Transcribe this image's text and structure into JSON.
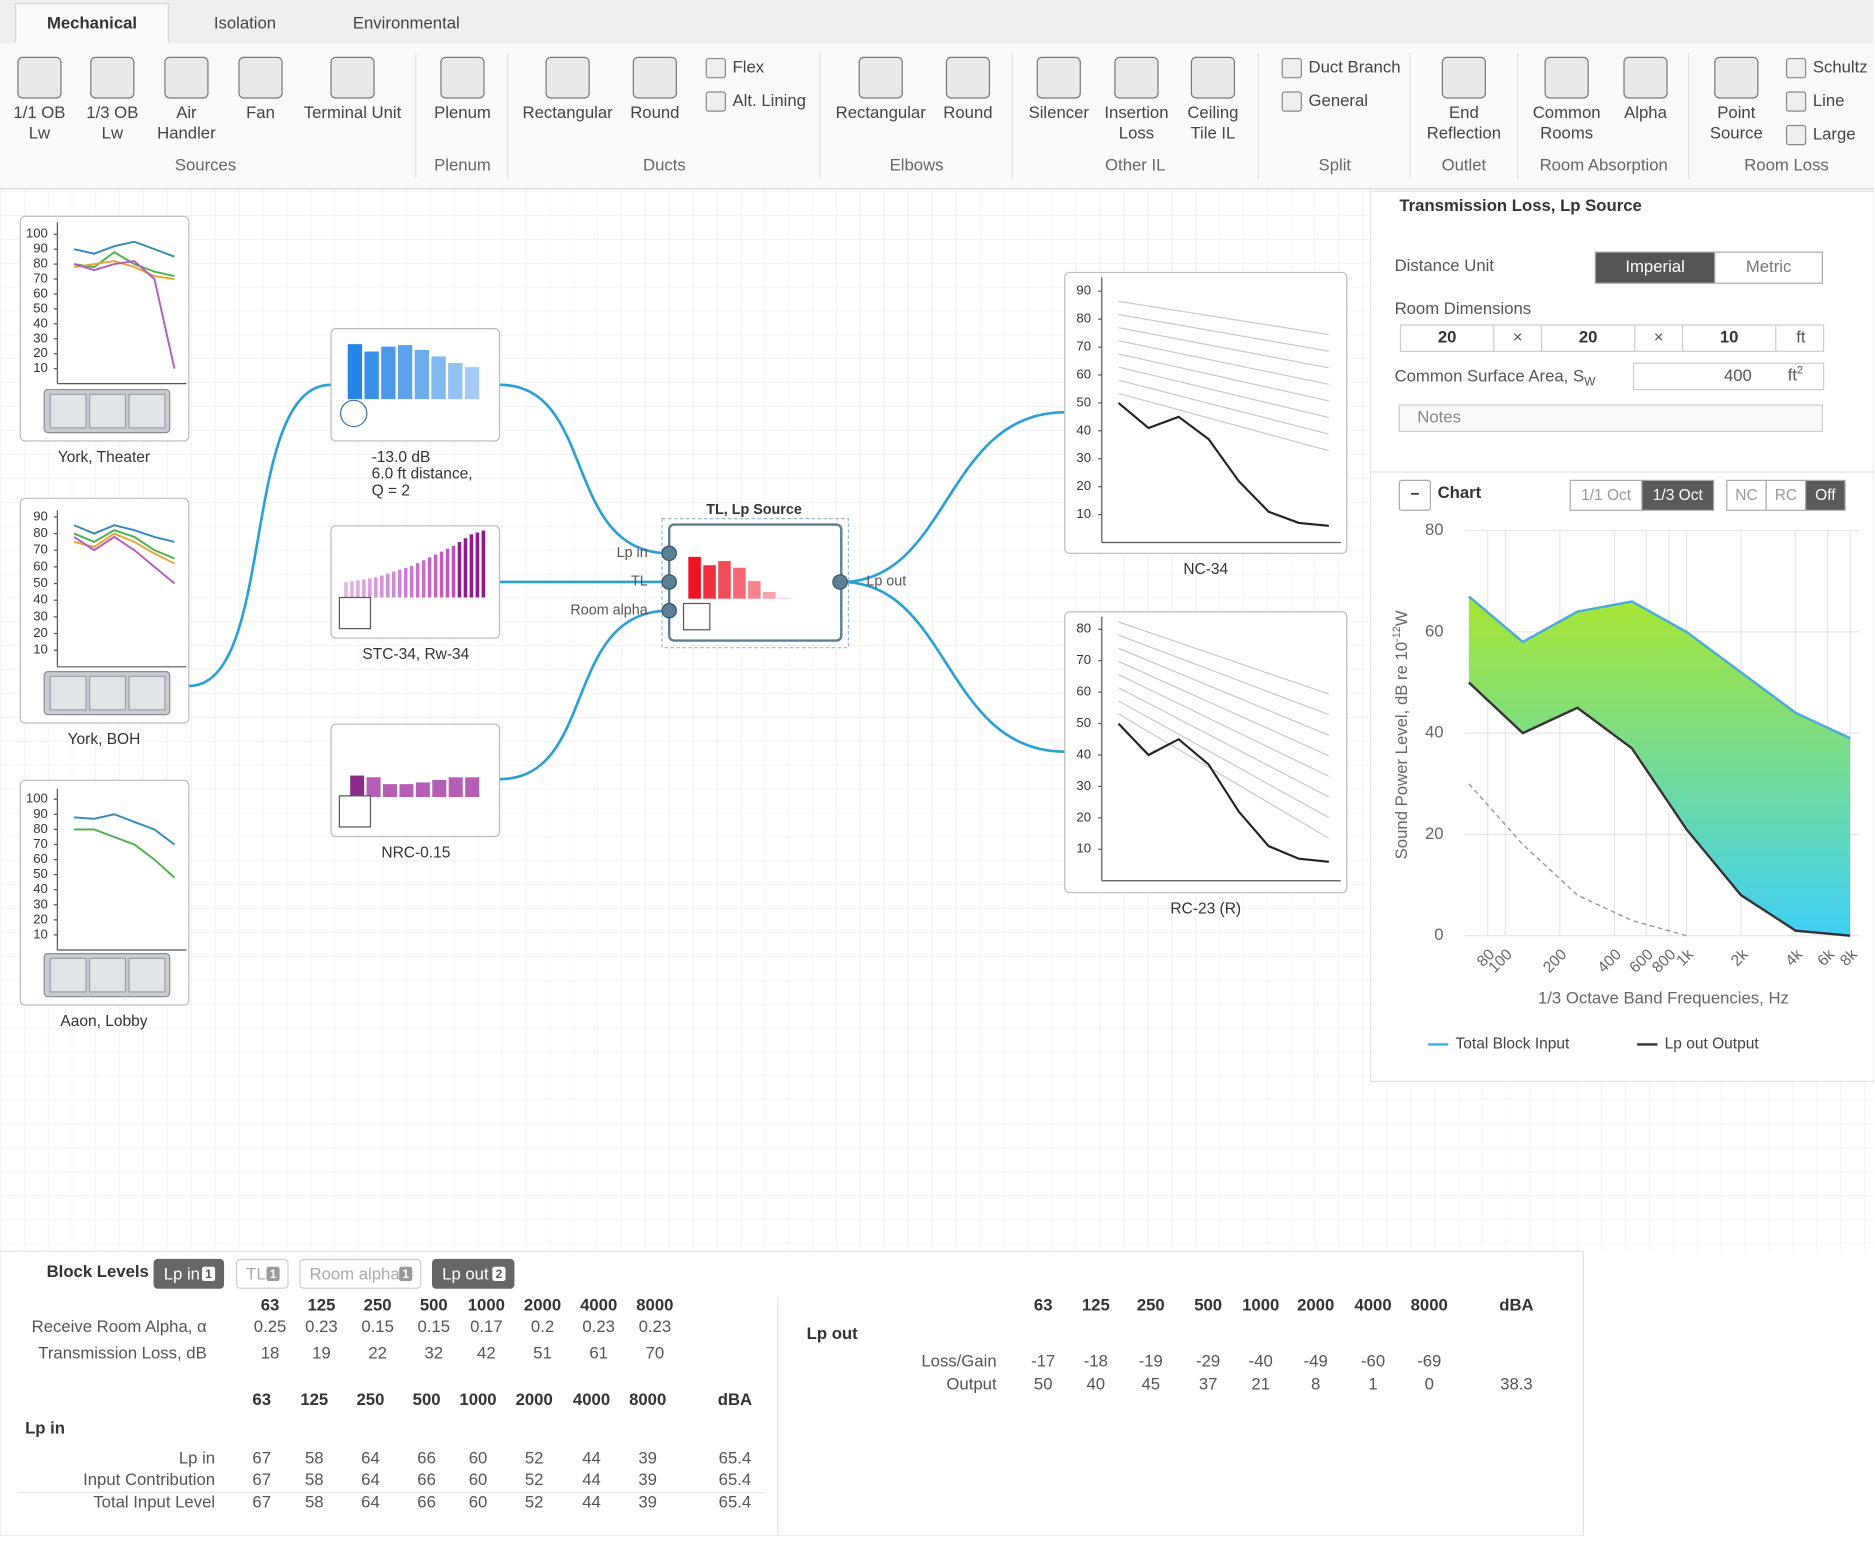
{
  "tabs": [
    "Mechanical",
    "Isolation",
    "Environmental"
  ],
  "active_tab": 0,
  "ribbon": [
    {
      "label": "Sources",
      "items": [
        [
          "1/1 OB",
          "Lw"
        ],
        [
          "1/3 OB",
          "Lw"
        ],
        [
          "Air",
          "Handler"
        ],
        [
          "Fan"
        ],
        [
          "Terminal Unit"
        ]
      ]
    },
    {
      "label": "Plenum",
      "items": [
        [
          "Plenum"
        ]
      ]
    },
    {
      "label": "Ducts",
      "items": [
        [
          "Rectangular"
        ],
        [
          "Round"
        ]
      ],
      "small": [
        "Flex",
        "Alt. Lining"
      ]
    },
    {
      "label": "Elbows",
      "items": [
        [
          "Rectangular"
        ],
        [
          "Round"
        ]
      ]
    },
    {
      "label": "Other IL",
      "items": [
        [
          "Silencer"
        ],
        [
          "Insertion",
          "Loss"
        ],
        [
          "Ceiling",
          "Tile IL"
        ]
      ]
    },
    {
      "label": "Split",
      "small": [
        "Duct Branch",
        "General"
      ]
    },
    {
      "label": "Outlet",
      "items": [
        [
          "End",
          "Reflection"
        ]
      ]
    },
    {
      "label": "Room Absorption",
      "items": [
        [
          "Common",
          "Rooms"
        ],
        [
          "Alpha"
        ]
      ]
    },
    {
      "label": "Room Loss",
      "items": [
        [
          "Point",
          "Source"
        ]
      ],
      "small": [
        "Schultz",
        "Line",
        "Large"
      ]
    }
  ],
  "sources": [
    {
      "label": "York, Theater",
      "ylim": [
        0,
        108
      ],
      "yticks": [
        10,
        20,
        30,
        40,
        50,
        60,
        70,
        80,
        90,
        100
      ],
      "series": [
        {
          "color": "#3a87b5",
          "values": [
            90,
            87,
            92,
            95,
            90,
            85
          ]
        },
        {
          "color": "#4cae4c",
          "values": [
            80,
            78,
            88,
            80,
            75,
            72
          ]
        },
        {
          "color": "#e8a33c",
          "values": [
            78,
            80,
            82,
            78,
            72,
            70
          ]
        },
        {
          "color": "#b15cc0",
          "values": [
            80,
            76,
            80,
            82,
            70,
            10
          ]
        }
      ]
    },
    {
      "label": "York, BOH",
      "ylim": [
        0,
        94
      ],
      "yticks": [
        10,
        20,
        30,
        40,
        50,
        60,
        70,
        80,
        90
      ],
      "series": [
        {
          "color": "#3a87b5",
          "values": [
            85,
            80,
            85,
            82,
            78,
            75
          ]
        },
        {
          "color": "#4cae4c",
          "values": [
            80,
            75,
            82,
            78,
            70,
            65
          ]
        },
        {
          "color": "#e8a33c",
          "values": [
            75,
            72,
            80,
            75,
            68,
            62
          ]
        },
        {
          "color": "#b15cc0",
          "values": [
            78,
            70,
            78,
            70,
            60,
            50
          ]
        }
      ]
    },
    {
      "label": "Aaon, Lobby",
      "ylim": [
        0,
        107
      ],
      "yticks": [
        10,
        20,
        30,
        40,
        50,
        60,
        70,
        80,
        90,
        100
      ],
      "series": [
        {
          "color": "#3a87b5",
          "values": [
            88,
            87,
            90,
            85,
            80,
            70
          ]
        },
        {
          "color": "#4cae4c",
          "values": [
            80,
            80,
            75,
            70,
            60,
            48
          ]
        }
      ]
    }
  ],
  "blocks": {
    "plenum": {
      "caption": [
        "-13.0 dB",
        "6.0 ft distance,",
        "Q = 2"
      ]
    },
    "stc": {
      "label": "STC-34, Rw-34",
      "values": [
        16,
        17,
        18,
        19,
        20,
        21,
        23,
        25,
        27,
        29,
        31,
        33,
        36,
        39,
        42,
        45,
        48,
        51,
        54,
        58,
        62,
        66,
        68,
        70
      ]
    },
    "nrc": {
      "label": "NRC-0.15"
    },
    "tl": {
      "title": "TL, Lp Source",
      "ports": [
        "Lp in",
        "TL",
        "Room alpha"
      ],
      "out_port": "Lp out"
    }
  },
  "nc_chart": {
    "label": "NC-34",
    "ylim": [
      0,
      95
    ],
    "yticks": [
      10,
      20,
      30,
      40,
      50,
      60,
      70,
      80,
      90
    ],
    "values": [
      50,
      41,
      45,
      37,
      22,
      11,
      7,
      6
    ]
  },
  "rc_chart": {
    "label": "RC-23 (R)",
    "ylim": [
      0,
      84
    ],
    "yticks": [
      10,
      20,
      30,
      40,
      50,
      60,
      70,
      80
    ],
    "values": [
      50,
      40,
      45,
      37,
      22,
      11,
      7,
      6
    ]
  },
  "panel": {
    "title": "Transmission Loss, Lp Source",
    "distance_unit": {
      "label": "Distance Unit",
      "options": [
        "Imperial",
        "Metric"
      ],
      "selected": 0
    },
    "room_dimensions": {
      "label": "Room Dimensions",
      "values": [
        20,
        20,
        10
      ],
      "separator": "×",
      "unit": "ft"
    },
    "surface_area": {
      "label": "Common Surface Area, S",
      "sub": "W",
      "value": 400,
      "unit": "ft",
      "unit_sup": "2"
    },
    "notes_placeholder": "Notes",
    "chart_header": {
      "collapse": "−",
      "title": "Chart",
      "resolution": [
        "1/1 Oct",
        "1/3 Oct"
      ],
      "resolution_selected": 1,
      "overlay": [
        "NC",
        "RC",
        "Off"
      ],
      "overlay_selected": 2
    }
  },
  "chart": {
    "type": "area",
    "y_label": "Sound Power Level, dB re 10",
    "y_label_sup": "-12",
    "y_label_end": "W",
    "x_label": "1/3 Octave Band Frequencies, Hz",
    "log_x": true,
    "xlim": [
      60,
      9000
    ],
    "xticks": [
      80,
      100,
      200,
      400,
      600,
      800,
      {
        "value": 1000,
        "label": "1k"
      },
      {
        "value": 2000,
        "label": "2k"
      },
      {
        "value": 4000,
        "label": "4k"
      },
      {
        "value": 6000,
        "label": "6k"
      },
      {
        "value": 8000,
        "label": "8k"
      }
    ],
    "ylim": [
      0,
      80
    ],
    "yticks": [
      0,
      20,
      40,
      60,
      80
    ],
    "grid": true,
    "x": [
      63,
      125,
      250,
      500,
      1000,
      2000,
      4000,
      8000
    ],
    "fill": [
      "#a8e632",
      "#3fd0f6"
    ],
    "series": [
      {
        "name": "Total Block Input",
        "color": "#4aa8dc",
        "values": [
          67,
          58,
          64,
          66,
          60,
          52,
          44,
          39
        ]
      },
      {
        "name": "Lp out Output",
        "color": "#333333",
        "values": [
          50,
          40,
          45,
          37,
          21,
          8,
          1,
          0
        ]
      },
      {
        "color": "#9a9a9a",
        "dash": true,
        "values": [
          30,
          18,
          8,
          3,
          0,
          null,
          null,
          null
        ]
      }
    ]
  },
  "block_levels": {
    "title": "Block Levels",
    "buttons": [
      {
        "label": "Lp in",
        "count": 1,
        "active": true
      },
      {
        "label": "TL",
        "count": 1,
        "active": false
      },
      {
        "label": "Room alpha",
        "count": 1,
        "active": false
      },
      {
        "label": "Lp out",
        "count": 2,
        "active": true
      }
    ],
    "params": {
      "header": [
        63,
        125,
        250,
        500,
        1000,
        2000,
        4000,
        8000
      ],
      "rows": [
        {
          "label": "Receive Room Alpha, α",
          "values": [
            0.25,
            0.23,
            0.15,
            0.15,
            0.17,
            0.2,
            0.23,
            0.23
          ]
        },
        {
          "label": "Transmission Loss, dB",
          "values": [
            18,
            19,
            22,
            32,
            42,
            51,
            61,
            70
          ]
        }
      ]
    },
    "lp_in": {
      "title": "Lp in",
      "header": [
        63,
        125,
        250,
        500,
        1000,
        2000,
        4000,
        8000
      ],
      "dba_header": "dBA",
      "rows": [
        {
          "label": "Lp in",
          "values": [
            67,
            58,
            64,
            66,
            60,
            52,
            44,
            39
          ],
          "dba": 65.4
        },
        {
          "label": "Input Contribution",
          "values": [
            67,
            58,
            64,
            66,
            60,
            52,
            44,
            39
          ],
          "dba": 65.4
        },
        {
          "label": "Total Input Level",
          "values": [
            67,
            58,
            64,
            66,
            60,
            52,
            44,
            39
          ],
          "dba": 65.4
        }
      ]
    },
    "lp_out": {
      "title": "Lp out",
      "header": [
        63,
        125,
        250,
        500,
        1000,
        2000,
        4000,
        8000
      ],
      "dba_header": "dBA",
      "rows": [
        {
          "label": "Loss/Gain",
          "values": [
            -17,
            -18,
            -19,
            -29,
            -40,
            -49,
            -60,
            -69
          ]
        },
        {
          "label": "Output",
          "values": [
            50,
            40,
            45,
            37,
            21,
            8,
            1,
            0
          ],
          "dba": 38.3
        }
      ]
    }
  }
}
